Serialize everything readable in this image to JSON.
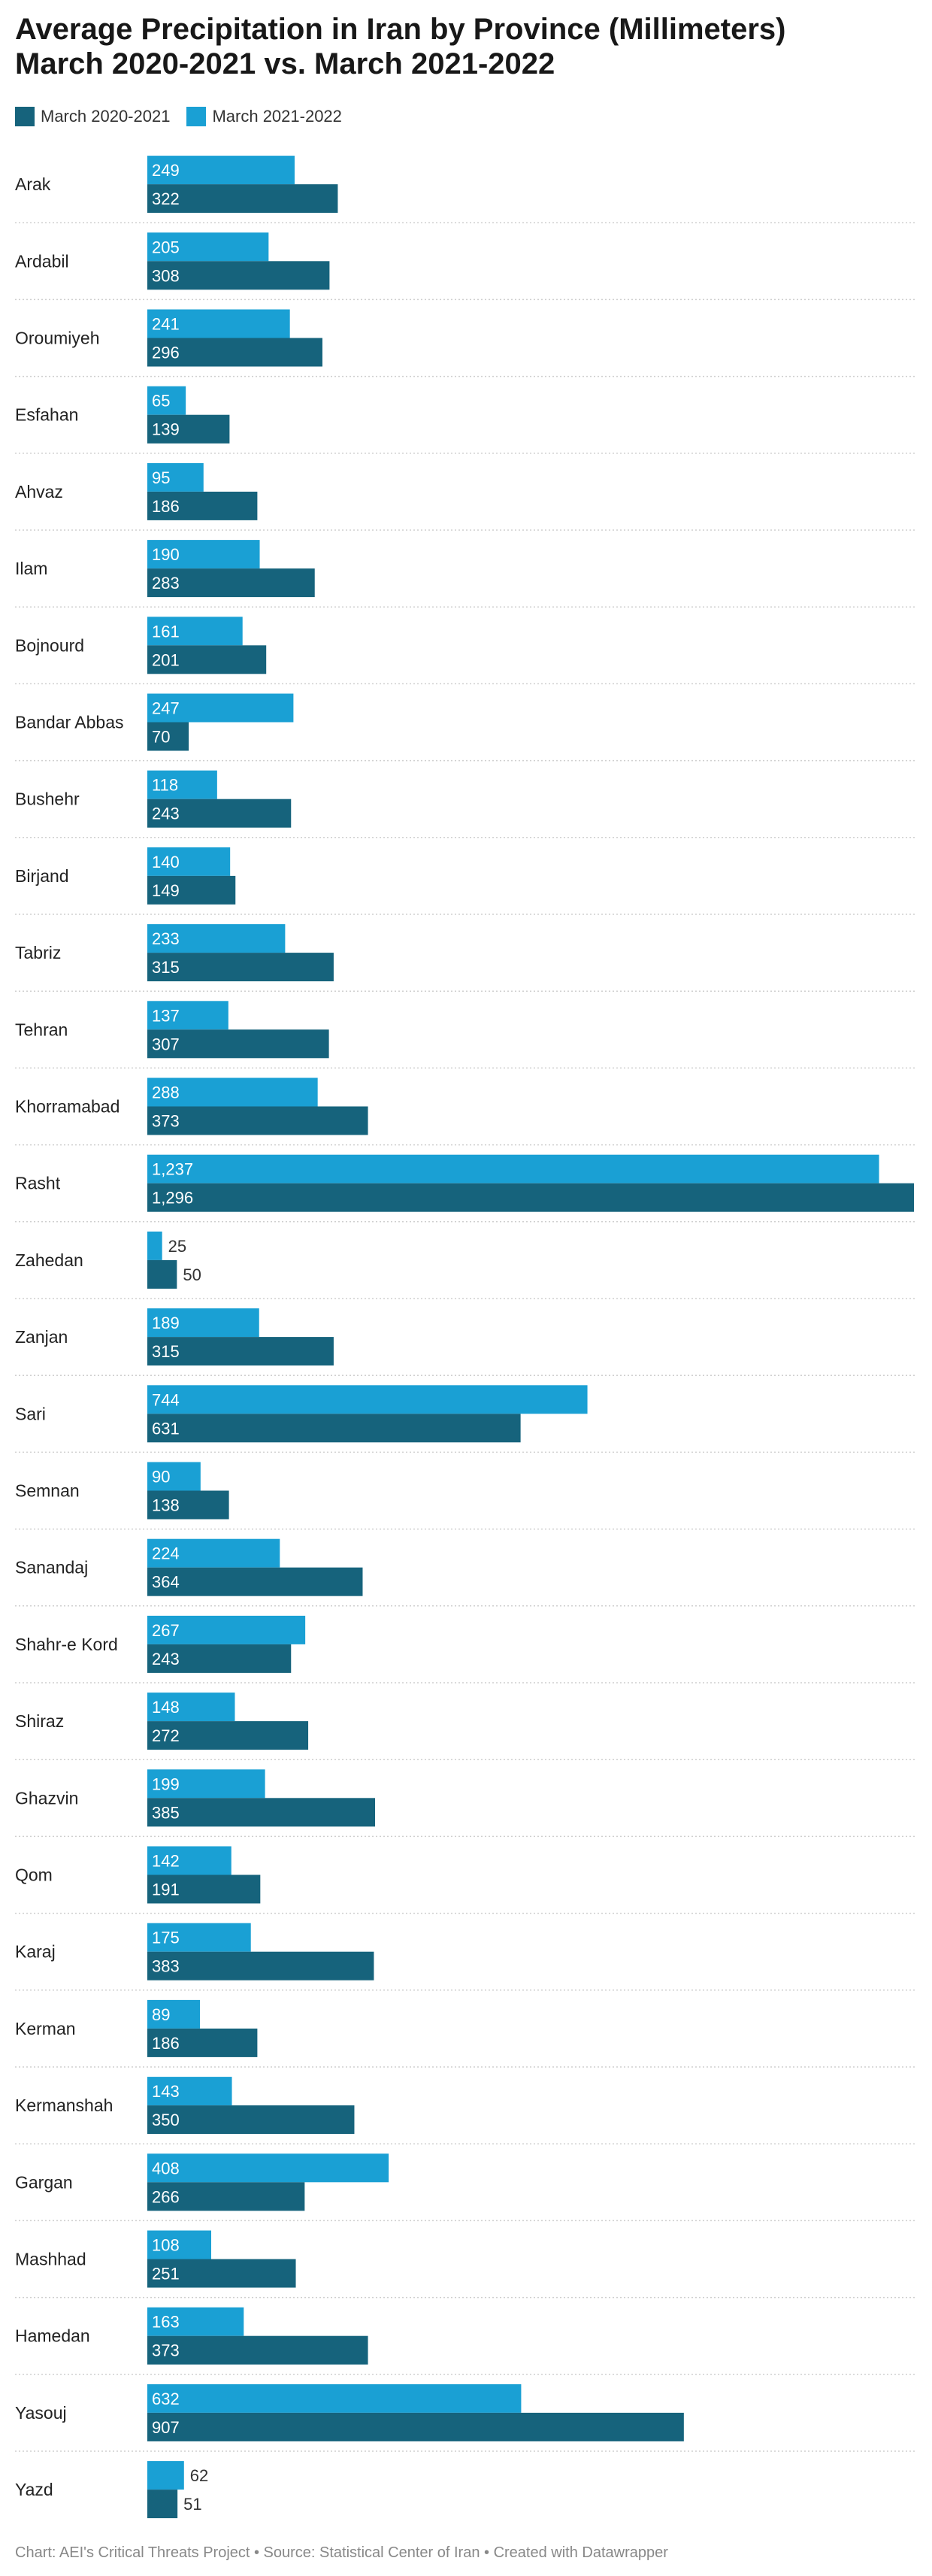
{
  "title_line1": "Average Precipitation in Iran by Province (Millimeters)",
  "title_line2": "March 2020-2021 vs. March 2021-2022",
  "footer": "Chart: AEI's Critical Threats Project • Source: Statistical Center of Iran • Created with Datawrapper",
  "colors": {
    "series_2021_2022": "#1aa0d4",
    "series_2020_2021": "#16637c",
    "grid": "#cfcfcf"
  },
  "chart_data": {
    "type": "bar",
    "orientation": "horizontal",
    "title": "Average Precipitation in Iran by Province (Millimeters) March 2020-2021 vs. March 2021-2022",
    "legend_position": "top-left",
    "categories": [
      "Arak",
      "Ardabil",
      "Oroumiyeh",
      "Esfahan",
      "Ahvaz",
      "Ilam",
      "Bojnourd",
      "Bandar Abbas",
      "Bushehr",
      "Birjand",
      "Tabriz",
      "Tehran",
      "Khorramabad",
      "Rasht",
      "Zahedan",
      "Zanjan",
      "Sari",
      "Semnan",
      "Sanandaj",
      "Shahr-e Kord",
      "Shiraz",
      "Ghazvin",
      "Qom",
      "Karaj",
      "Kerman",
      "Kermanshah",
      "Gargan",
      "Mashhad",
      "Hamedan",
      "Yasouj",
      "Yazd"
    ],
    "series": [
      {
        "name": "March 2020-2021",
        "values": [
          322,
          308,
          296,
          139,
          186,
          283,
          201,
          70,
          243,
          149,
          315,
          307,
          373,
          1296,
          50,
          315,
          631,
          138,
          364,
          243,
          272,
          385,
          191,
          383,
          186,
          350,
          266,
          251,
          373,
          907,
          51
        ]
      },
      {
        "name": "March 2021-2022",
        "values": [
          249,
          205,
          241,
          65,
          95,
          190,
          161,
          247,
          118,
          140,
          233,
          137,
          288,
          1237,
          25,
          189,
          744,
          90,
          224,
          267,
          148,
          199,
          142,
          175,
          89,
          143,
          408,
          108,
          163,
          632,
          62
        ]
      }
    ],
    "xlim": [
      0,
      1296
    ],
    "grid": false
  }
}
